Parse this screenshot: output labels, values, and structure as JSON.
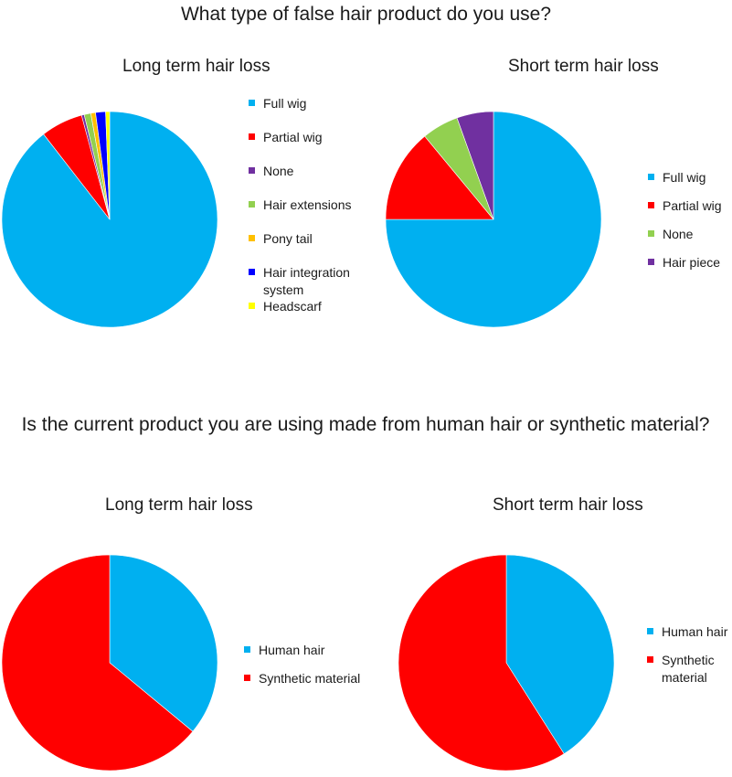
{
  "titles": {
    "q1": "What type of false hair product do you use?",
    "q2": "Is the current product you are using made from human hair or synthetic material?"
  },
  "chart_data": [
    {
      "type": "pie",
      "title": "Long term hair loss",
      "labels": [
        "Full wig",
        "Partial wig",
        "None",
        "Hair extensions",
        "Pony tail",
        "Hair integration system",
        "Headscarf"
      ],
      "values": [
        89.5,
        6.3,
        0.4,
        1.0,
        0.7,
        1.5,
        0.6
      ],
      "colors": [
        "#00b0f0",
        "#ff0000",
        "#7030a0",
        "#92d050",
        "#ffc000",
        "#0000ff",
        "#ffff00"
      ],
      "legend": "right"
    },
    {
      "type": "pie",
      "title": "Short term hair loss",
      "labels": [
        "Full wig",
        "Partial wig",
        "None",
        "Hair piece"
      ],
      "values": [
        75.0,
        14.0,
        5.5,
        5.5
      ],
      "colors": [
        "#00b0f0",
        "#ff0000",
        "#92d050",
        "#7030a0"
      ],
      "legend": "right"
    },
    {
      "type": "pie",
      "title": "Long term hair loss",
      "labels": [
        "Human hair",
        "Synthetic material"
      ],
      "values": [
        36,
        64
      ],
      "colors": [
        "#00b0f0",
        "#ff0000"
      ],
      "legend": "right"
    },
    {
      "type": "pie",
      "title": "Short term hair loss",
      "labels": [
        "Human hair",
        "Synthetic material"
      ],
      "values": [
        41,
        59
      ],
      "colors": [
        "#00b0f0",
        "#ff0000"
      ],
      "legend": "right"
    }
  ]
}
